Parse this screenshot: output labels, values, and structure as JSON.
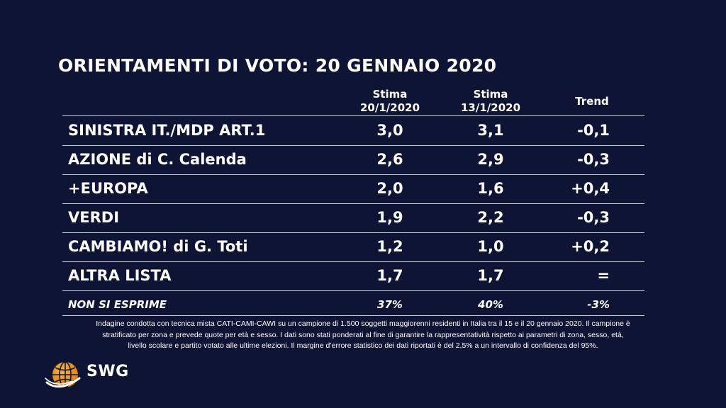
{
  "title": "ORIENTAMENTI DI VOTO: 20 GENNAIO 2020",
  "columns": {
    "col1": {
      "line1": "Stima",
      "line2": "20/1/2020"
    },
    "col2": {
      "line1": "Stima",
      "line2": "13/1/2020"
    },
    "col3": "Trend"
  },
  "rows": [
    {
      "party": "SINISTRA IT./MDP ART.1",
      "est_20": "3,0",
      "est_13": "3,1",
      "trend": "-0,1"
    },
    {
      "party": "AZIONE di C. Calenda",
      "est_20": "2,6",
      "est_13": "2,9",
      "trend": "-0,3"
    },
    {
      "party": "+EUROPA",
      "est_20": "2,0",
      "est_13": "1,6",
      "trend": "+0,4"
    },
    {
      "party": "VERDI",
      "est_20": "1,9",
      "est_13": "2,2",
      "trend": "-0,3"
    },
    {
      "party": "CAMBIAMO! di G. Toti",
      "est_20": "1,2",
      "est_13": "1,0",
      "trend": "+0,2"
    },
    {
      "party": "ALTRA LISTA",
      "est_20": "1,7",
      "est_13": "1,7",
      "trend": "="
    }
  ],
  "no_opinion": {
    "label": "NON SI ESPRIME",
    "est_20": "37%",
    "est_13": "40%",
    "trend": "-3%"
  },
  "footnote": {
    "line1": "Indagine condotta con tecnica mista CATI-CAMI-CAWI su un campione di 1.500 soggetti maggiorenni residenti in Italia tra il 15 e il 20 gennaio 2020. Il campione è",
    "line2": "stratificato per zona e prevede quote per età e sesso. I dati sono stati ponderati al fine di garantire la rappresentatività rispetto ai parametri di zona, sesso, età,",
    "line3": "livello scolare e partito votato alle ultime elezioni. Il margine d’errore statistico dei dati riportati è del 2,5% a un intervallo di confidenza del 95%."
  },
  "brand": "SWG",
  "colors": {
    "background": "#0e1433",
    "text": "#ffffff",
    "logo_orange": "#f39200"
  }
}
